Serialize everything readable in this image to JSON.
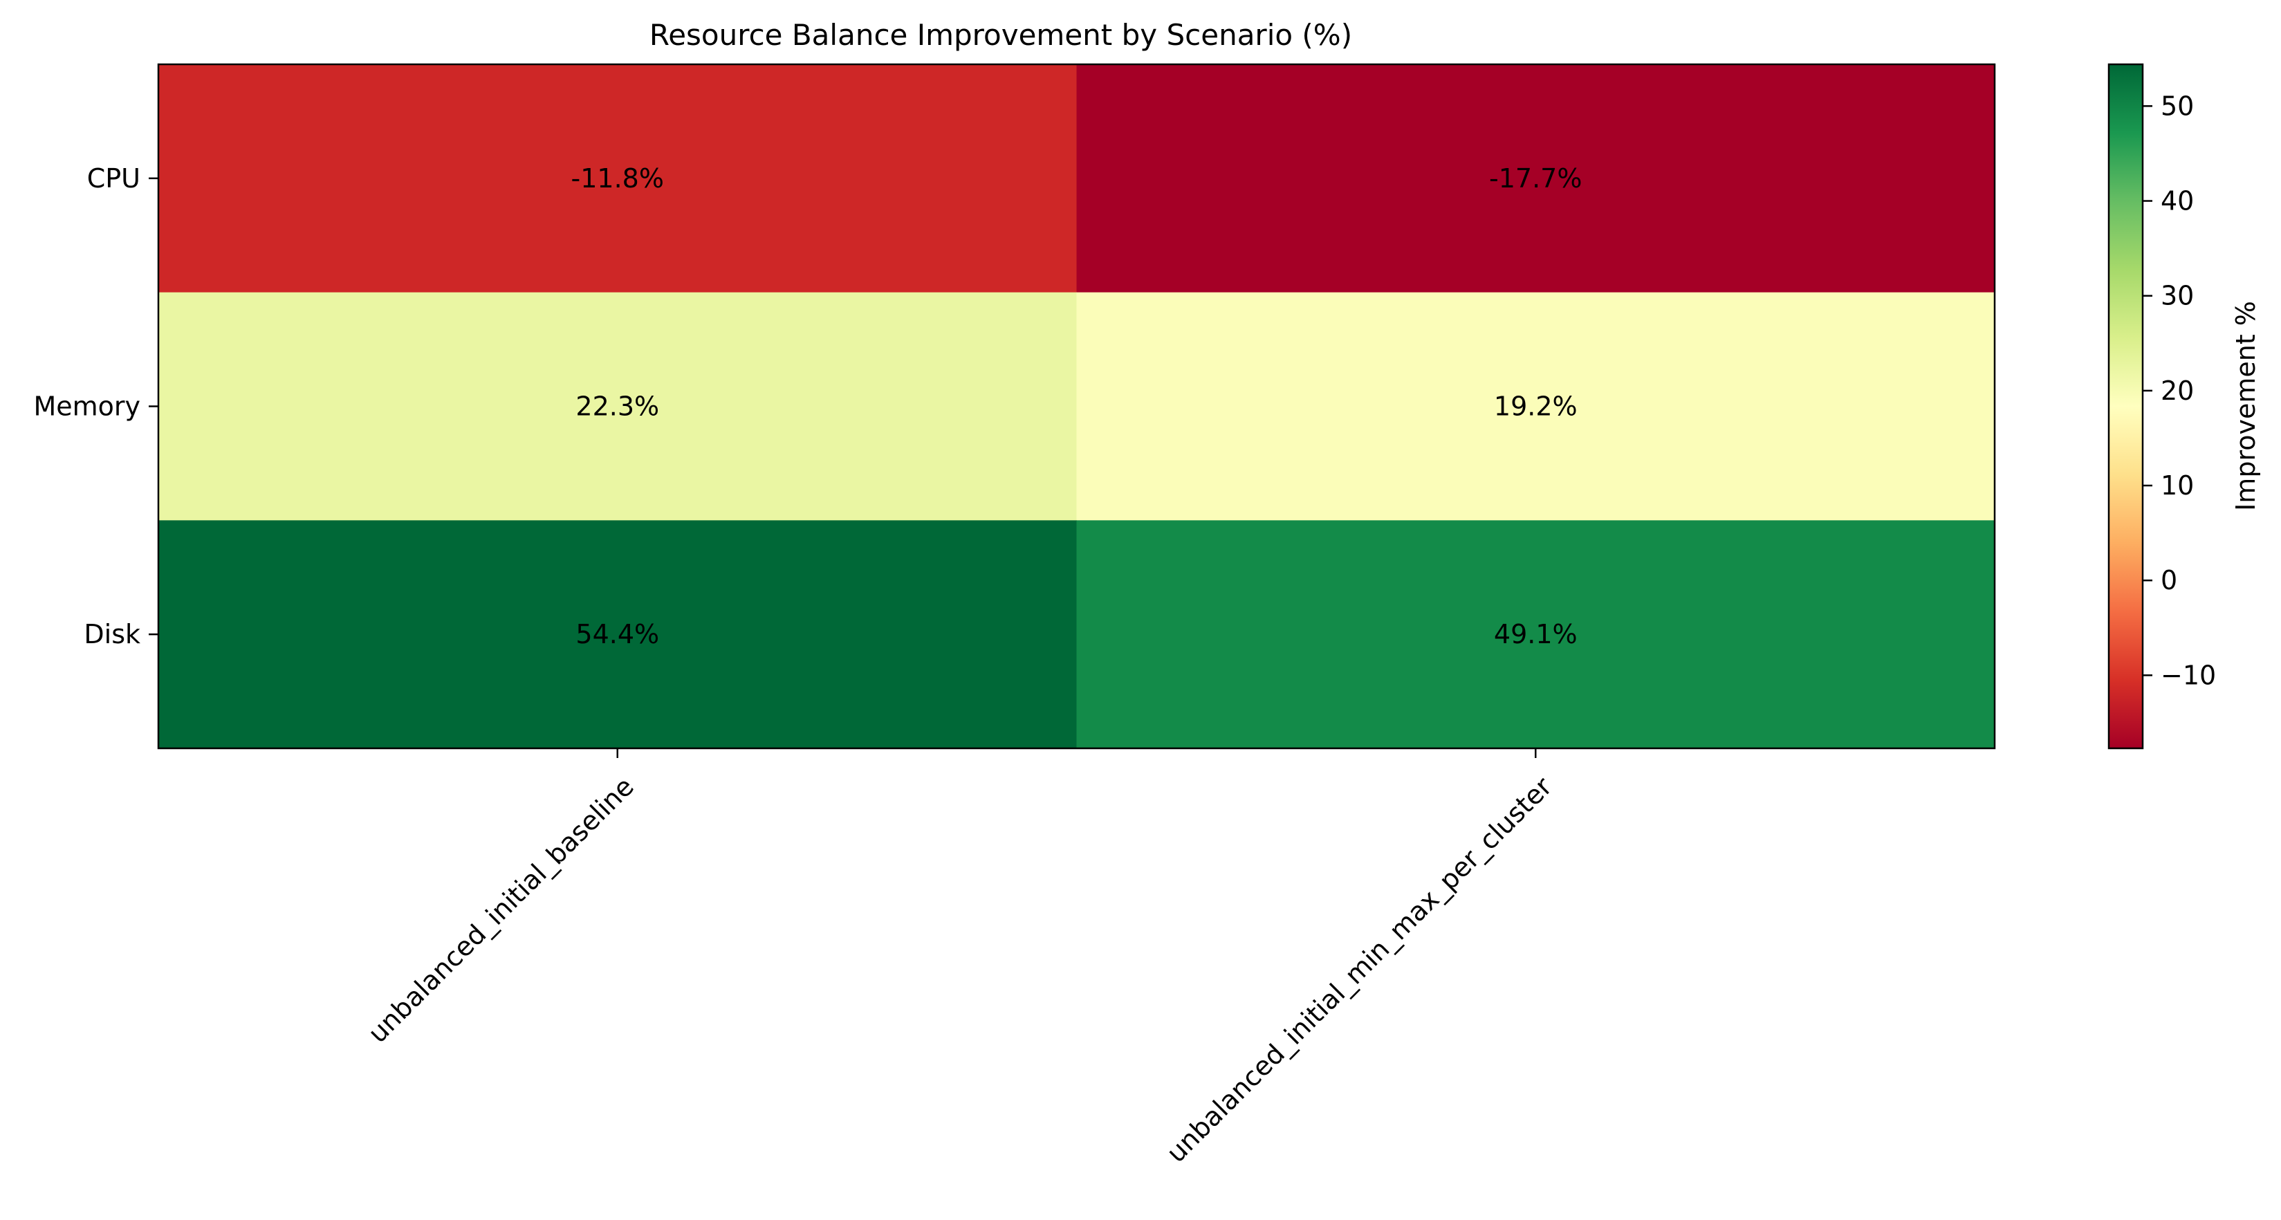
{
  "chart_data": {
    "type": "heatmap",
    "title": "Resource Balance Improvement by Scenario (%)",
    "xlabel": "",
    "ylabel": "",
    "x_categories": [
      "unbalanced_initial_baseline",
      "unbalanced_initial_min_max_per_cluster"
    ],
    "y_categories": [
      "CPU",
      "Memory",
      "Disk"
    ],
    "values": [
      [
        -11.8,
        -17.7
      ],
      [
        22.3,
        19.2
      ],
      [
        54.4,
        49.1
      ]
    ],
    "cell_labels": [
      [
        "-11.8%",
        "-17.7%"
      ],
      [
        "22.3%",
        "19.2%"
      ],
      [
        "54.4%",
        "49.1%"
      ]
    ],
    "colormap": "RdYlGn",
    "vmin": -17.7,
    "vmax": 54.4,
    "colorbar": {
      "label": "Improvement %",
      "ticks": [
        -10,
        0,
        10,
        20,
        30,
        40,
        50
      ],
      "tick_labels": [
        "−10",
        "0",
        "10",
        "20",
        "30",
        "40",
        "50"
      ]
    },
    "grid": false,
    "x_tick_rotation_deg": 45
  }
}
